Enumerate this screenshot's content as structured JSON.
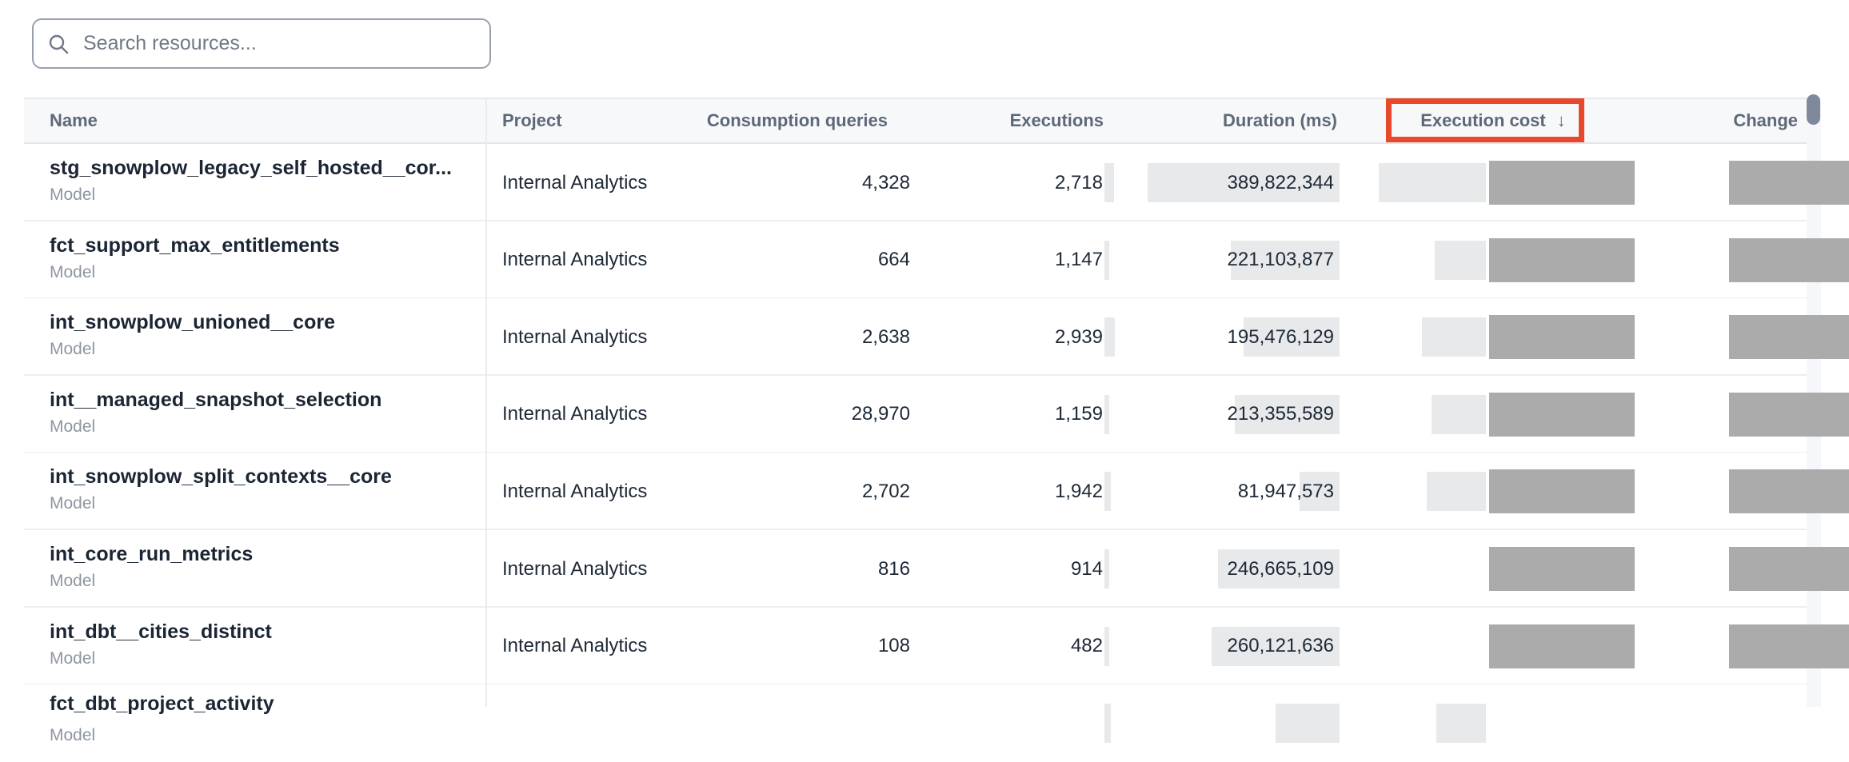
{
  "search": {
    "placeholder": "Search resources...",
    "icon": "search-icon"
  },
  "table": {
    "sort_arrow": "↓",
    "columns": [
      {
        "label": "Name"
      },
      {
        "label": "Project"
      },
      {
        "label": "Consumption queries"
      },
      {
        "label": "Executions"
      },
      {
        "label": "Duration (ms)"
      },
      {
        "label": "Execution cost",
        "sorted": "desc",
        "annotated": true
      },
      {
        "label": "Change"
      }
    ],
    "rows": [
      {
        "name": "stg_snowplow_legacy_self_hosted__cor...",
        "type": "Model",
        "project": "Internal Analytics",
        "consumption_queries": "4,328",
        "executions": "2,718",
        "duration_ms": "389,822,344",
        "cost_prefix": "$",
        "cost_redacted": true,
        "cost_bar": 134,
        "change_sign": "-$",
        "change_redacted": true
      },
      {
        "name": "fct_support_max_entitlements",
        "type": "Model",
        "project": "Internal Analytics",
        "consumption_queries": "664",
        "executions": "1,147",
        "duration_ms": "221,103,877",
        "cost_prefix": "$",
        "cost_redacted": true,
        "cost_bar": 64,
        "change_sign": "+$",
        "change_redacted": true
      },
      {
        "name": "int_snowplow_unioned__core",
        "type": "Model",
        "project": "Internal Analytics",
        "consumption_queries": "2,638",
        "executions": "2,939",
        "duration_ms": "195,476,129",
        "cost_prefix": "$",
        "cost_redacted": true,
        "cost_bar": 80,
        "change_sign": "-$",
        "change_redacted": true
      },
      {
        "name": "int__managed_snapshot_selection",
        "type": "Model",
        "project": "Internal Analytics",
        "consumption_queries": "28,970",
        "executions": "1,159",
        "duration_ms": "213,355,589",
        "cost_prefix": "$",
        "cost_redacted": true,
        "cost_bar": 68,
        "change_sign": "-$",
        "change_redacted": true
      },
      {
        "name": "int_snowplow_split_contexts__core",
        "type": "Model",
        "project": "Internal Analytics",
        "consumption_queries": "2,702",
        "executions": "1,942",
        "duration_ms": "81,947,573",
        "cost_prefix": "$",
        "cost_redacted": true,
        "cost_bar": 74,
        "change_sign": "-$",
        "change_redacted": true
      },
      {
        "name": "int_core_run_metrics",
        "type": "Model",
        "project": "Internal Analytics",
        "consumption_queries": "816",
        "executions": "914",
        "duration_ms": "246,665,109",
        "cost_prefix": "$",
        "cost_redacted": true,
        "cost_bar": 0,
        "change_sign": "-$",
        "change_redacted": true
      },
      {
        "name": "int_dbt__cities_distinct",
        "type": "Model",
        "project": "Internal Analytics",
        "consumption_queries": "108",
        "executions": "482",
        "duration_ms": "260,121,636",
        "cost_prefix": "$",
        "cost_redacted": true,
        "cost_bar": 0,
        "change_sign": "-$",
        "change_redacted": true
      },
      {
        "name": "fct_dbt_project_activity",
        "type": "Model",
        "project": "",
        "consumption_queries": "",
        "executions": "",
        "duration_ms": "",
        "cost_prefix": "",
        "cost_redacted": false,
        "cost_bar": 62,
        "change_sign": "",
        "change_redacted": false,
        "partial": true,
        "dur_bar": 80,
        "ex_bar": 8
      }
    ]
  },
  "colors": {
    "annotation_box": "#e8492c",
    "redaction_gray": "#ababab",
    "magnitude_bar": "#e7e9eb",
    "negative_green": "#277a4d",
    "positive_red": "#b02e22"
  }
}
